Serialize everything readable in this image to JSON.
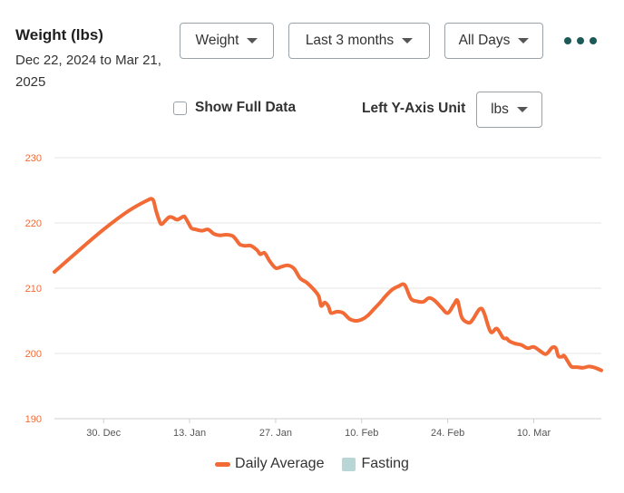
{
  "header": {
    "title": "Weight (lbs)",
    "date_range": "Dec 22, 2024 to Mar 21, 2025"
  },
  "controls": {
    "metric_select": "Weight",
    "range_select": "Last 3 months",
    "days_select": "All Days",
    "more_icon": "more-horizontal-icon",
    "show_full_data_label": "Show Full Data",
    "show_full_data_checked": false,
    "left_axis_label": "Left Y-Axis Unit",
    "unit_select": "lbs"
  },
  "colors": {
    "line": "#f26a35",
    "fasting": "#b7d6d5",
    "grid": "#e5e5e5",
    "tick_label": "#f26a35",
    "accent": "#1c5a57"
  },
  "chart_data": {
    "type": "line",
    "title": "Weight (lbs)",
    "xlabel": "",
    "ylabel": "lbs",
    "x_ticks": [
      "30. Dec",
      "13. Jan",
      "27. Jan",
      "10. Feb",
      "24. Feb",
      "10. Mar"
    ],
    "x_tick_days": [
      8,
      22,
      36,
      50,
      64,
      78
    ],
    "x_range_days": [
      0,
      89
    ],
    "ylim": [
      190,
      230
    ],
    "y_ticks": [
      190,
      200,
      210,
      220,
      230
    ],
    "grid": true,
    "legend_position": "bottom-center",
    "legend": [
      "Daily Average",
      "Fasting"
    ],
    "series": [
      {
        "name": "Daily Average",
        "x": [
          0,
          4,
          8,
          12,
          15,
          16,
          16.5,
          17,
          17.4,
          18,
          18.7,
          19.3,
          20,
          21,
          21.3,
          21.8,
          22.3,
          23,
          24,
          25,
          26,
          27,
          28,
          29,
          29.6,
          30.2,
          31,
          32,
          33,
          33.5,
          34.2,
          35,
          36,
          37,
          38,
          39,
          40,
          41,
          42,
          43,
          43.4,
          44,
          44.6,
          45,
          46,
          47,
          48,
          49,
          50,
          51,
          52,
          53,
          54,
          55,
          56,
          57,
          58,
          59,
          60,
          61,
          62,
          63,
          64,
          65,
          65.6,
          66.3,
          67.4,
          68,
          68.8,
          69.2,
          69.6,
          70,
          71,
          72,
          73,
          73.6,
          74,
          75,
          76,
          77,
          78,
          79,
          80,
          81,
          81.6,
          82,
          82.6,
          83,
          84,
          84.5,
          85,
          86,
          87,
          88,
          89
        ],
        "values": [
          212.5,
          215.8,
          219,
          221.8,
          223.4,
          223.6,
          222,
          220.5,
          219.8,
          220.3,
          220.9,
          220.8,
          220.5,
          221,
          220.8,
          220,
          219.2,
          219,
          218.8,
          219,
          218.3,
          218.1,
          218.2,
          218,
          217.4,
          216.7,
          216.5,
          216.5,
          215.8,
          215.2,
          215.4,
          214.2,
          213.1,
          213.3,
          213.5,
          213,
          211.5,
          210.9,
          210,
          208.8,
          207.3,
          207.8,
          207.2,
          206.2,
          206.4,
          206.2,
          205.3,
          205,
          205.2,
          205.8,
          206.8,
          207.8,
          208.9,
          209.8,
          210.3,
          210.5,
          208.4,
          208,
          207.9,
          208.5,
          208,
          207,
          206.2,
          207.5,
          208.1,
          205.5,
          204.7,
          205.1,
          206.3,
          206.8,
          206.8,
          206,
          203.3,
          203.8,
          202.4,
          202.3,
          201.9,
          201.5,
          201.3,
          200.8,
          201,
          200.4,
          199.9,
          200.9,
          200.8,
          199.6,
          199.5,
          199.6,
          198.1,
          197.9,
          197.9,
          197.8,
          198,
          197.8,
          197.4
        ]
      },
      {
        "name": "Fasting",
        "x": [],
        "values": []
      }
    ]
  }
}
